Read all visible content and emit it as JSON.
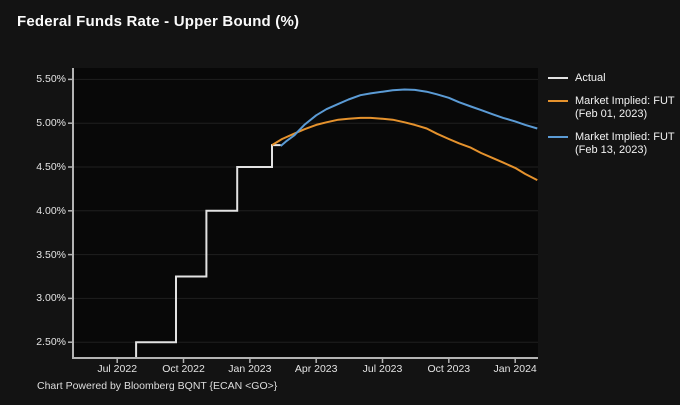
{
  "page": {
    "title": "Federal Funds Rate - Upper Bound (%)",
    "footer": "Chart Powered by Bloomberg BQNT {ECAN <GO>}",
    "colors": {
      "page_bg": "#131313",
      "plot_bg": "#080808",
      "grid": "#1f1f1f",
      "axis": "#b3b3b3",
      "tick_text": "#e4e4e4",
      "title_text": "#fafafa",
      "actual_line": "#e2e2e2",
      "feb01_line": "#e5922d",
      "feb13_line": "#5b9bd5"
    }
  },
  "chart_data": {
    "type": "line",
    "title": "Federal Funds Rate - Upper Bound (%)",
    "xlabel": "",
    "ylabel": "",
    "grid": "horizontal",
    "legend_position": "right",
    "x_domain": [
      "2022-05-01",
      "2024-02-02"
    ],
    "ylim": [
      2.32,
      5.63
    ],
    "y_ticks": [
      {
        "value": 5.5,
        "label": "5.50%"
      },
      {
        "value": 5.0,
        "label": "5.00%"
      },
      {
        "value": 4.5,
        "label": "4.50%"
      },
      {
        "value": 4.0,
        "label": "4.00%"
      },
      {
        "value": 3.5,
        "label": "3.50%"
      },
      {
        "value": 3.0,
        "label": "3.00%"
      },
      {
        "value": 2.5,
        "label": "2.50%"
      }
    ],
    "x_ticks": [
      {
        "date": "2022-07-01",
        "label": "Jul 2022"
      },
      {
        "date": "2022-10-01",
        "label": "Oct 2022"
      },
      {
        "date": "2023-01-01",
        "label": "Jan 2023"
      },
      {
        "date": "2023-04-01",
        "label": "Apr 2023"
      },
      {
        "date": "2023-07-01",
        "label": "Jul 2023"
      },
      {
        "date": "2023-10-01",
        "label": "Oct 2023"
      },
      {
        "date": "2024-01-01",
        "label": "Jan 2024"
      }
    ],
    "series": [
      {
        "id": "actual",
        "name": "Actual",
        "legend_lines": [
          "Actual"
        ],
        "color": "#e2e2e2",
        "style": "step",
        "points": [
          [
            "2022-07-27",
            1.75
          ],
          [
            "2022-07-27",
            2.5
          ],
          [
            "2022-09-21",
            2.5
          ],
          [
            "2022-09-21",
            3.25
          ],
          [
            "2022-11-02",
            3.25
          ],
          [
            "2022-11-02",
            4.0
          ],
          [
            "2022-12-14",
            4.0
          ],
          [
            "2022-12-14",
            4.5
          ],
          [
            "2023-02-01",
            4.5
          ],
          [
            "2023-02-01",
            4.75
          ],
          [
            "2023-02-13",
            4.75
          ]
        ]
      },
      {
        "id": "market-implied-feb-01-2023",
        "name": "Market Implied: FUT (Feb 01, 2023)",
        "legend_lines": [
          "Market Implied: FUT",
          "(Feb 01, 2023)"
        ],
        "color": "#e5922d",
        "style": "smooth",
        "points": [
          [
            "2023-02-01",
            4.75
          ],
          [
            "2023-02-15",
            4.82
          ],
          [
            "2023-03-01",
            4.88
          ],
          [
            "2023-03-15",
            4.93
          ],
          [
            "2023-04-01",
            4.98
          ],
          [
            "2023-04-15",
            5.01
          ],
          [
            "2023-05-01",
            5.04
          ],
          [
            "2023-05-15",
            5.05
          ],
          [
            "2023-06-01",
            5.06
          ],
          [
            "2023-06-15",
            5.06
          ],
          [
            "2023-07-01",
            5.05
          ],
          [
            "2023-07-15",
            5.04
          ],
          [
            "2023-08-01",
            5.01
          ],
          [
            "2023-08-15",
            4.98
          ],
          [
            "2023-09-01",
            4.94
          ],
          [
            "2023-09-15",
            4.88
          ],
          [
            "2023-10-01",
            4.82
          ],
          [
            "2023-10-15",
            4.77
          ],
          [
            "2023-11-01",
            4.72
          ],
          [
            "2023-11-15",
            4.66
          ],
          [
            "2023-12-01",
            4.6
          ],
          [
            "2023-12-15",
            4.55
          ],
          [
            "2024-01-01",
            4.49
          ],
          [
            "2024-01-15",
            4.42
          ],
          [
            "2024-02-01",
            4.35
          ]
        ]
      },
      {
        "id": "market-implied-feb-13-2023",
        "name": "Market Implied: FUT (Feb 13, 2023)",
        "legend_lines": [
          "Market Implied: FUT",
          "(Feb 13, 2023)"
        ],
        "color": "#5b9bd5",
        "style": "smooth",
        "points": [
          [
            "2023-02-13",
            4.74
          ],
          [
            "2023-02-20",
            4.79
          ],
          [
            "2023-03-01",
            4.86
          ],
          [
            "2023-03-15",
            4.98
          ],
          [
            "2023-04-01",
            5.09
          ],
          [
            "2023-04-15",
            5.16
          ],
          [
            "2023-05-01",
            5.22
          ],
          [
            "2023-05-15",
            5.27
          ],
          [
            "2023-06-01",
            5.32
          ],
          [
            "2023-06-15",
            5.34
          ],
          [
            "2023-07-01",
            5.36
          ],
          [
            "2023-07-15",
            5.375
          ],
          [
            "2023-08-01",
            5.385
          ],
          [
            "2023-08-15",
            5.38
          ],
          [
            "2023-09-01",
            5.36
          ],
          [
            "2023-09-15",
            5.33
          ],
          [
            "2023-10-01",
            5.29
          ],
          [
            "2023-10-15",
            5.24
          ],
          [
            "2023-11-01",
            5.19
          ],
          [
            "2023-11-15",
            5.15
          ],
          [
            "2023-12-01",
            5.1
          ],
          [
            "2023-12-15",
            5.06
          ],
          [
            "2024-01-01",
            5.02
          ],
          [
            "2024-01-15",
            4.98
          ],
          [
            "2024-02-01",
            4.94
          ]
        ]
      }
    ]
  }
}
